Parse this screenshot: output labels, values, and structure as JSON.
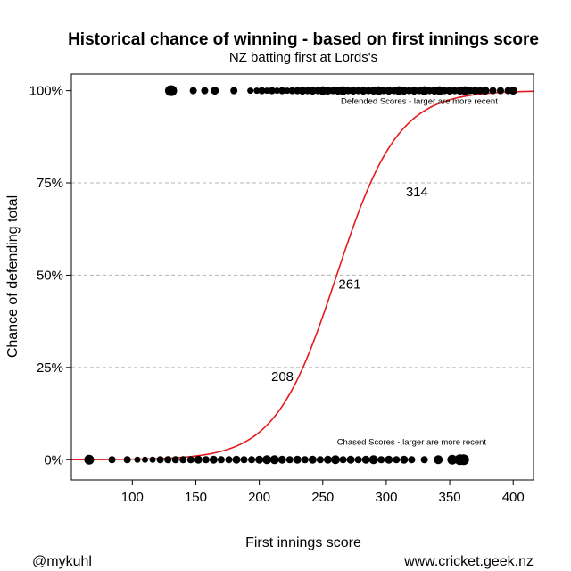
{
  "chart_data": {
    "type": "scatter",
    "title": "Historical chance of winning - based on first innings score",
    "subtitle": "NZ batting first at Lords's",
    "xlabel": "First innings score",
    "ylabel": "Chance of defending total",
    "xlim": [
      52,
      416
    ],
    "ylim": [
      -0.055,
      1.045
    ],
    "x_ticks": [
      100,
      150,
      200,
      250,
      300,
      350,
      400
    ],
    "y_ticks": [
      {
        "value": 0,
        "label": "0%"
      },
      {
        "value": 0.25,
        "label": "25%"
      },
      {
        "value": 0.5,
        "label": "50%"
      },
      {
        "value": 0.75,
        "label": "75%"
      },
      {
        "value": 1,
        "label": "100%"
      }
    ],
    "grid": "horizontal-dashed",
    "curve": {
      "type": "logistic",
      "color": "#e41a1c",
      "midpoint": 261,
      "scale": 24.2,
      "x_range": [
        52,
        416
      ]
    },
    "callouts": [
      {
        "x": 208,
        "y": 0.25,
        "label": "208"
      },
      {
        "x": 261,
        "y": 0.5,
        "label": "261"
      },
      {
        "x": 314,
        "y": 0.75,
        "label": "314"
      }
    ],
    "annotations": [
      {
        "text": "Defended Scores - larger are more recent",
        "x": 326,
        "y": 0.964
      },
      {
        "text": "Chased Scores - larger are more recent",
        "x": 320,
        "y": 0.04
      }
    ],
    "series": [
      {
        "name": "Defended",
        "y": 1,
        "points": [
          {
            "x": 130,
            "size": 6
          },
          {
            "x": 131,
            "size": 6
          },
          {
            "x": 148,
            "size": 4
          },
          {
            "x": 157,
            "size": 4
          },
          {
            "x": 165,
            "size": 4.5
          },
          {
            "x": 180,
            "size": 4
          },
          {
            "x": 193,
            "size": 3.5
          },
          {
            "x": 198,
            "size": 3.5
          },
          {
            "x": 202,
            "size": 4
          },
          {
            "x": 206,
            "size": 3.5
          },
          {
            "x": 210,
            "size": 4
          },
          {
            "x": 214,
            "size": 3.5
          },
          {
            "x": 218,
            "size": 4
          },
          {
            "x": 222,
            "size": 3.5
          },
          {
            "x": 226,
            "size": 4
          },
          {
            "x": 230,
            "size": 4
          },
          {
            "x": 234,
            "size": 4.5
          },
          {
            "x": 238,
            "size": 4
          },
          {
            "x": 242,
            "size": 4.5
          },
          {
            "x": 246,
            "size": 4
          },
          {
            "x": 250,
            "size": 5
          },
          {
            "x": 254,
            "size": 4.5
          },
          {
            "x": 258,
            "size": 4
          },
          {
            "x": 262,
            "size": 4.5
          },
          {
            "x": 266,
            "size": 5
          },
          {
            "x": 270,
            "size": 4
          },
          {
            "x": 274,
            "size": 4.5
          },
          {
            "x": 278,
            "size": 4
          },
          {
            "x": 282,
            "size": 4.5
          },
          {
            "x": 286,
            "size": 4
          },
          {
            "x": 290,
            "size": 4.5
          },
          {
            "x": 294,
            "size": 5
          },
          {
            "x": 298,
            "size": 4
          },
          {
            "x": 302,
            "size": 4.5
          },
          {
            "x": 306,
            "size": 4
          },
          {
            "x": 310,
            "size": 5
          },
          {
            "x": 314,
            "size": 4.5
          },
          {
            "x": 318,
            "size": 4
          },
          {
            "x": 322,
            "size": 4.5
          },
          {
            "x": 326,
            "size": 4
          },
          {
            "x": 330,
            "size": 5
          },
          {
            "x": 334,
            "size": 4
          },
          {
            "x": 338,
            "size": 4.5
          },
          {
            "x": 342,
            "size": 5
          },
          {
            "x": 346,
            "size": 4
          },
          {
            "x": 350,
            "size": 4.5
          },
          {
            "x": 354,
            "size": 4
          },
          {
            "x": 358,
            "size": 4.5
          },
          {
            "x": 362,
            "size": 5
          },
          {
            "x": 366,
            "size": 4
          },
          {
            "x": 370,
            "size": 4.5
          },
          {
            "x": 374,
            "size": 4
          },
          {
            "x": 378,
            "size": 4.5
          },
          {
            "x": 384,
            "size": 4
          },
          {
            "x": 390,
            "size": 4
          },
          {
            "x": 396,
            "size": 4
          },
          {
            "x": 400,
            "size": 4.5
          }
        ]
      },
      {
        "name": "Chased",
        "y": 0,
        "points": [
          {
            "x": 66,
            "size": 5.5
          },
          {
            "x": 84,
            "size": 4
          },
          {
            "x": 96,
            "size": 4
          },
          {
            "x": 104,
            "size": 3.5
          },
          {
            "x": 110,
            "size": 3.5
          },
          {
            "x": 116,
            "size": 3.5
          },
          {
            "x": 122,
            "size": 4
          },
          {
            "x": 128,
            "size": 4
          },
          {
            "x": 134,
            "size": 4
          },
          {
            "x": 140,
            "size": 4
          },
          {
            "x": 146,
            "size": 4
          },
          {
            "x": 152,
            "size": 4.5
          },
          {
            "x": 158,
            "size": 4
          },
          {
            "x": 164,
            "size": 4.5
          },
          {
            "x": 170,
            "size": 4
          },
          {
            "x": 176,
            "size": 4
          },
          {
            "x": 182,
            "size": 4.5
          },
          {
            "x": 188,
            "size": 4
          },
          {
            "x": 194,
            "size": 4
          },
          {
            "x": 200,
            "size": 4.5
          },
          {
            "x": 206,
            "size": 5
          },
          {
            "x": 212,
            "size": 5
          },
          {
            "x": 218,
            "size": 4.5
          },
          {
            "x": 224,
            "size": 4
          },
          {
            "x": 230,
            "size": 4.5
          },
          {
            "x": 236,
            "size": 4
          },
          {
            "x": 242,
            "size": 4.5
          },
          {
            "x": 248,
            "size": 4
          },
          {
            "x": 254,
            "size": 4.5
          },
          {
            "x": 260,
            "size": 5
          },
          {
            "x": 266,
            "size": 4
          },
          {
            "x": 272,
            "size": 4.5
          },
          {
            "x": 278,
            "size": 4
          },
          {
            "x": 284,
            "size": 4.5
          },
          {
            "x": 290,
            "size": 5
          },
          {
            "x": 296,
            "size": 4
          },
          {
            "x": 302,
            "size": 4.5
          },
          {
            "x": 308,
            "size": 4
          },
          {
            "x": 314,
            "size": 4.5
          },
          {
            "x": 320,
            "size": 4
          },
          {
            "x": 330,
            "size": 4
          },
          {
            "x": 341,
            "size": 5
          },
          {
            "x": 352,
            "size": 5.5
          },
          {
            "x": 358,
            "size": 6
          },
          {
            "x": 361,
            "size": 6
          }
        ]
      }
    ]
  },
  "footer": {
    "left": "@mykuhl",
    "right": "www.cricket.geek.nz"
  }
}
